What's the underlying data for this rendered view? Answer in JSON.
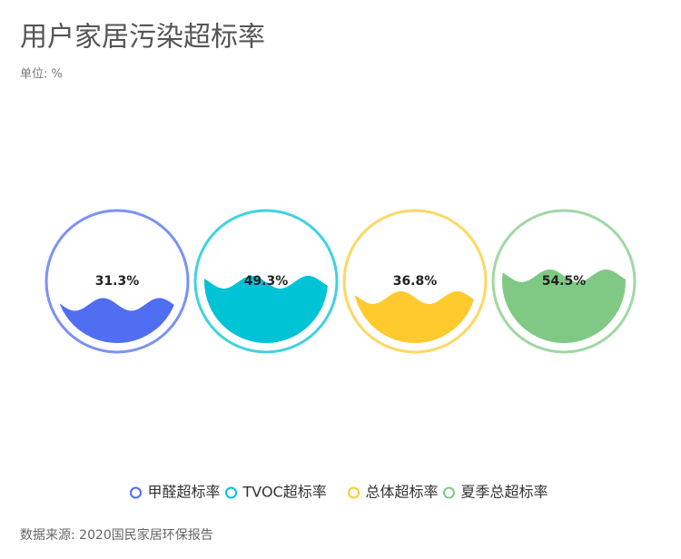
{
  "chart_data": {
    "type": "liquidfill",
    "title": "用户家居污染超标率",
    "subtitle": "单位: %",
    "categories": [
      "甲醛超标率",
      "TVOC超标率",
      "总体超标率",
      "夏季总超标率"
    ],
    "values": [
      31.3,
      49.3,
      36.8,
      54.5
    ],
    "value_labels": [
      "31.3%",
      "49.3%",
      "36.8%",
      "54.5%"
    ],
    "colors": [
      "#4f6ef2",
      "#00c3d6",
      "#ffca2e",
      "#80c985"
    ],
    "source": "数据来源: 2020国民家居环保报告"
  }
}
